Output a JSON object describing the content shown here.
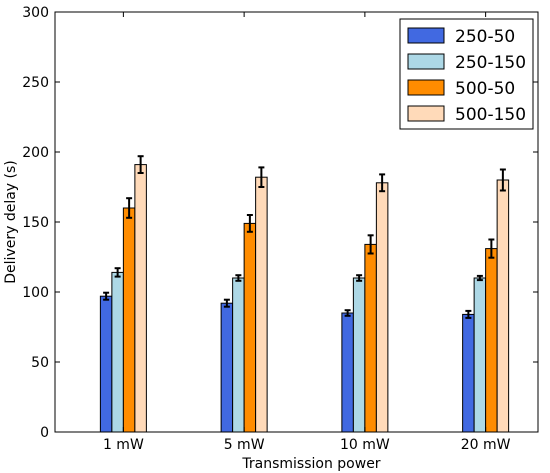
{
  "chart_data": {
    "type": "bar",
    "title": "",
    "xlabel": "Transmission power",
    "ylabel": "Delivery delay (s)",
    "ylim": [
      0,
      300
    ],
    "yticks": [
      0,
      50,
      100,
      150,
      200,
      250,
      300
    ],
    "categories": [
      "1 mW",
      "5 mW",
      "10 mW",
      "20 mW"
    ],
    "legend_position": "top-right",
    "grid": false,
    "error_bars": true,
    "series": [
      {
        "name": "250-50",
        "color": "#4169e1",
        "values": [
          97,
          92,
          85,
          84
        ],
        "errors": [
          2.5,
          2.5,
          2,
          2.5
        ]
      },
      {
        "name": "250-150",
        "color": "#add8e6",
        "values": [
          114,
          110,
          110,
          110
        ],
        "errors": [
          3,
          2,
          2,
          1.5
        ]
      },
      {
        "name": "500-50",
        "color": "#ff8c00",
        "values": [
          160,
          149,
          134,
          131
        ],
        "errors": [
          7,
          6,
          6.5,
          6.5
        ]
      },
      {
        "name": "500-150",
        "color": "#ffdab9",
        "values": [
          191,
          182,
          178,
          180
        ],
        "errors": [
          6,
          7,
          6,
          7.5
        ]
      }
    ]
  }
}
